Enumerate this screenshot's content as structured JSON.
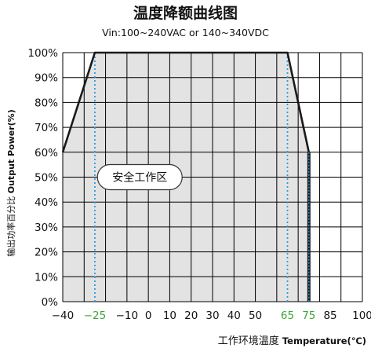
{
  "chart_data": {
    "type": "line",
    "title": "温度降额曲线图",
    "subtitle": "Vin:100~240VAC or 140~340VDC",
    "ylabel_cn": "输出功率百分比",
    "ylabel_en": "Output Power(%)",
    "xlabel_cn": "工作环境温度",
    "xlabel_en": "Temperature(℃)",
    "xlim": [
      -40,
      100
    ],
    "ylim": [
      0,
      100
    ],
    "x_ticks": [
      {
        "value": -40,
        "label": "−40",
        "highlight": false
      },
      {
        "value": -25,
        "label": "−25",
        "highlight": true
      },
      {
        "value": -10,
        "label": "−10",
        "highlight": false
      },
      {
        "value": 0,
        "label": "0",
        "highlight": false
      },
      {
        "value": 10,
        "label": "10",
        "highlight": false
      },
      {
        "value": 20,
        "label": "20",
        "highlight": false
      },
      {
        "value": 30,
        "label": "30",
        "highlight": false
      },
      {
        "value": 40,
        "label": "40",
        "highlight": false
      },
      {
        "value": 50,
        "label": "50",
        "highlight": false
      },
      {
        "value": 65,
        "label": "65",
        "highlight": true
      },
      {
        "value": 75,
        "label": "75",
        "highlight": true
      },
      {
        "value": 85,
        "label": "85",
        "highlight": false
      },
      {
        "value": 100,
        "label": "100",
        "highlight": false
      }
    ],
    "y_ticks": [
      {
        "value": 0,
        "label": "0%"
      },
      {
        "value": 10,
        "label": "10%"
      },
      {
        "value": 20,
        "label": "20%"
      },
      {
        "value": 30,
        "label": "30%"
      },
      {
        "value": 40,
        "label": "40%"
      },
      {
        "value": 50,
        "label": "50%"
      },
      {
        "value": 60,
        "label": "60%"
      },
      {
        "value": 70,
        "label": "70%"
      },
      {
        "value": 80,
        "label": "80%"
      },
      {
        "value": 90,
        "label": "90%"
      },
      {
        "value": 100,
        "label": "100%"
      }
    ],
    "grid_x": [
      -40,
      -30,
      -20,
      -10,
      0,
      10,
      20,
      30,
      40,
      50,
      60,
      70,
      80,
      90,
      100
    ],
    "grid_y": [
      0,
      10,
      20,
      30,
      40,
      50,
      60,
      70,
      80,
      90,
      100
    ],
    "series": [
      {
        "x": [
          -40,
          -25,
          65,
          75
        ],
        "y": [
          60,
          100,
          100,
          60
        ]
      }
    ],
    "marker_lines": [
      {
        "x": -25,
        "style": "dotted",
        "color": "#2b9be0"
      },
      {
        "x": 65,
        "style": "dotted",
        "color": "#2b9be0"
      }
    ],
    "drop_line": {
      "x": 75,
      "y_top": 60,
      "color": "#2b9be0"
    },
    "area_label": "安全工作区",
    "area_label_pos": {
      "x": -4,
      "y": 50
    },
    "colors": {
      "area": "#e3e3e3",
      "grid": "#000000",
      "curve": "#1a1a1a",
      "highlight": "#3aa635"
    }
  }
}
